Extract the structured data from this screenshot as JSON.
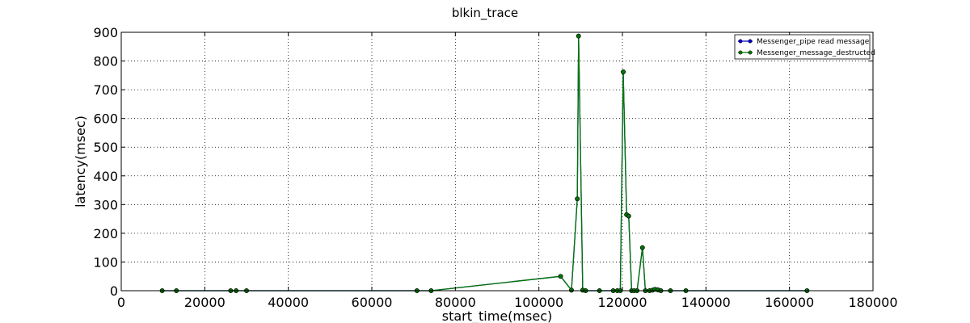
{
  "chart_data": {
    "type": "line",
    "title": "blkin_trace",
    "xlabel": "start_time(msec)",
    "ylabel": "latency(msec)",
    "xlim": [
      0,
      180000
    ],
    "ylim": [
      0,
      900
    ],
    "xticks": [
      0,
      20000,
      40000,
      60000,
      80000,
      100000,
      120000,
      140000,
      160000,
      180000
    ],
    "yticks": [
      0,
      100,
      200,
      300,
      400,
      500,
      600,
      700,
      800,
      900
    ],
    "grid": true,
    "legend_position": "top-right",
    "series": [
      {
        "name": "Messenger_pipe read message",
        "color": "#0000cc",
        "marker": "circle",
        "x": [
          9800,
          13200,
          26200,
          27500,
          30000,
          70800,
          74200,
          105200,
          107800,
          109200,
          109500,
          110500,
          111200,
          114500,
          117800,
          118800,
          119500,
          120200,
          121000,
          121500,
          122200,
          122800,
          123500,
          124800,
          125500,
          126500,
          127200,
          127800,
          128500,
          129200,
          131500,
          135200,
          164200
        ],
        "y": [
          0,
          0,
          0,
          0,
          0,
          0,
          0,
          50,
          2,
          320,
          887,
          2,
          0,
          0,
          0,
          0,
          0,
          762,
          265,
          260,
          0,
          0,
          0,
          150,
          0,
          0,
          2,
          5,
          3,
          0,
          0,
          0,
          0
        ]
      },
      {
        "name": "Messenger_message_destructed",
        "color": "#007700",
        "marker": "circle",
        "x": [
          9800,
          13200,
          26200,
          27500,
          30000,
          70800,
          74200,
          105200,
          107800,
          109200,
          109500,
          110500,
          111200,
          114500,
          117800,
          118800,
          119500,
          120200,
          121000,
          121500,
          122200,
          122800,
          123500,
          124800,
          125500,
          126500,
          127200,
          127800,
          128500,
          129200,
          131500,
          135200,
          164200
        ],
        "y": [
          0,
          0,
          0,
          0,
          0,
          0,
          0,
          50,
          2,
          320,
          887,
          2,
          0,
          0,
          0,
          0,
          0,
          762,
          265,
          260,
          0,
          0,
          0,
          150,
          0,
          0,
          2,
          5,
          3,
          0,
          0,
          0,
          0
        ]
      }
    ]
  }
}
